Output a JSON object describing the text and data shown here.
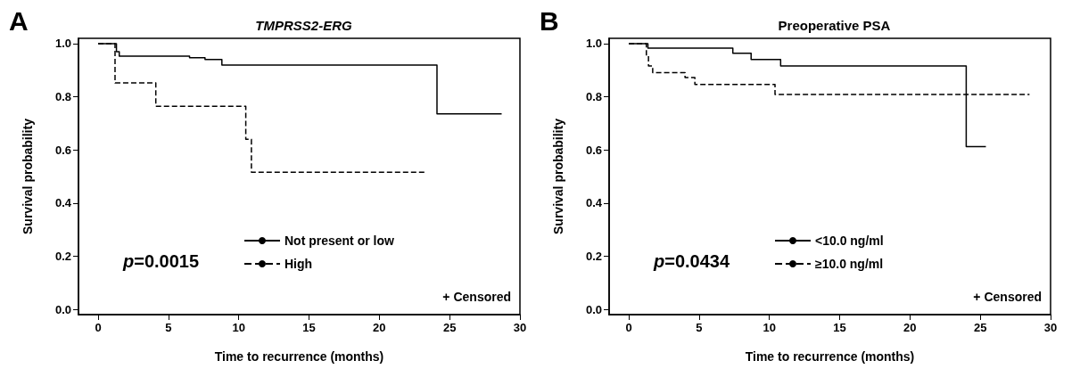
{
  "chart_data": [
    {
      "type": "step",
      "title": "TMPRSS2-ERG",
      "xlabel": "Time to recurrence (months)",
      "ylabel": "Survival probability",
      "annotations": [
        "A",
        "p=0.0015",
        "+ Censored"
      ],
      "legend": "bottom",
      "marker": "none",
      "grid": false,
      "xlim": [
        -1.4,
        30
      ],
      "xticks": [
        0,
        5,
        10,
        15,
        20,
        25,
        30
      ],
      "ylim": [
        -0.02,
        1.02
      ],
      "yticks": [
        {
          "value": 0,
          "label": "0.0"
        },
        {
          "value": 0.2,
          "label": "0.2"
        },
        {
          "value": 0.4,
          "label": "0.4"
        },
        {
          "value": 0.6,
          "label": "0.6"
        },
        {
          "value": 0.8,
          "label": "0.8"
        },
        {
          "value": 1,
          "label": "1.0"
        }
      ],
      "series": [
        {
          "name": "Not present or low",
          "color": "#000000",
          "line_style": "solid",
          "x": [
            0,
            1.3,
            1.5,
            6.5,
            7.6,
            8.8,
            24.1,
            28.7
          ],
          "values": [
            1,
            0.97,
            0.953,
            0.947,
            0.94,
            0.919,
            0.736,
            0.736
          ]
        },
        {
          "name": "High",
          "color": "#000000",
          "line_style": "dashed",
          "x": [
            0,
            1.2,
            4.1,
            10.5,
            10.9,
            23.3
          ],
          "values": [
            1,
            0.852,
            0.764,
            0.64,
            0.516,
            0.516
          ]
        }
      ]
    },
    {
      "type": "step",
      "title": "Preoperative PSA",
      "xlabel": "Time to recurrence (months)",
      "ylabel": "Survival probability",
      "annotations": [
        "B",
        "p=0.0434",
        "+ Censored"
      ],
      "legend": "bottom",
      "marker": "none",
      "grid": false,
      "xlim": [
        -1.4,
        30
      ],
      "xticks": [
        0,
        5,
        10,
        15,
        20,
        25,
        30
      ],
      "ylim": [
        -0.02,
        1.02
      ],
      "yticks": [
        {
          "value": 0,
          "label": "0.0"
        },
        {
          "value": 0.2,
          "label": "0.2"
        },
        {
          "value": 0.4,
          "label": "0.4"
        },
        {
          "value": 0.6,
          "label": "0.6"
        },
        {
          "value": 0.8,
          "label": "0.8"
        },
        {
          "value": 1,
          "label": "1.0"
        }
      ],
      "series": [
        {
          "name": "<10.0 ng/ml",
          "color": "#000000",
          "line_style": "solid",
          "x": [
            0,
            1.36,
            7.4,
            8.7,
            10.8,
            24.0,
            25.4
          ],
          "values": [
            1,
            0.983,
            0.964,
            0.94,
            0.916,
            0.612,
            0.612
          ]
        },
        {
          "name": "≥10.0 ng/ml",
          "color": "#000000",
          "line_style": "dashed",
          "x": [
            0,
            1.25,
            1.4,
            1.7,
            4.0,
            4.7,
            10.4,
            28.5
          ],
          "values": [
            1,
            0.955,
            0.916,
            0.891,
            0.872,
            0.846,
            0.809,
            0.809
          ]
        }
      ]
    }
  ]
}
